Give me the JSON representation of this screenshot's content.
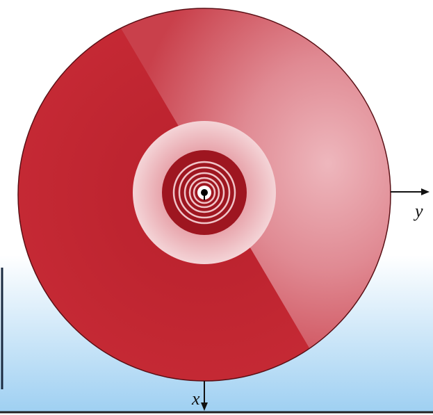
{
  "axes": {
    "y_label": "y",
    "x_label": "x"
  }
}
